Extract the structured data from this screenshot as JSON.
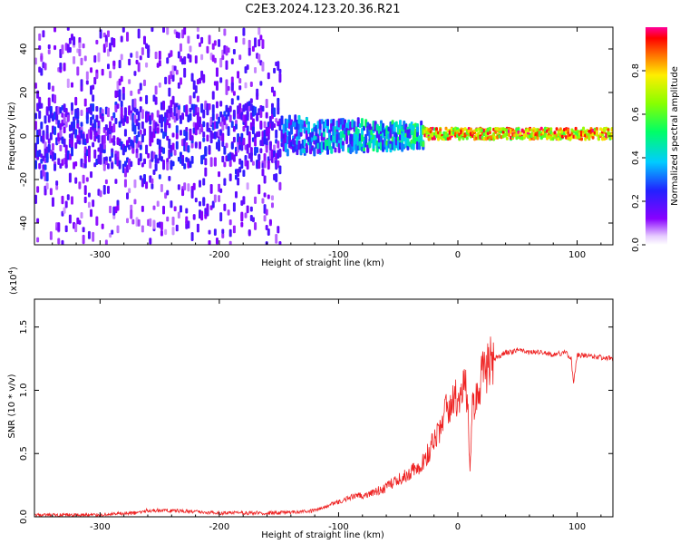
{
  "title": "C2E3.2024.123.20.36.R21",
  "colors": {
    "snr_line": "#ee2222",
    "spectrogram_low": "#8800ff",
    "spectrogram_mid": "#00ffaa",
    "spectrogram_high": "#ff0000"
  },
  "chart_data": [
    {
      "type": "heatmap",
      "name": "spectrogram",
      "xlabel": "Height of straight line (km)",
      "ylabel": "Frequency (Hz)",
      "xlim": [
        -355,
        130
      ],
      "ylim": [
        -50,
        50
      ],
      "xticks": [
        -300,
        -200,
        -100,
        0,
        100
      ],
      "yticks": [
        -40,
        -20,
        0,
        20,
        40
      ],
      "colorbar": {
        "label": "Normalized spectral amplitude",
        "range": [
          0.0,
          1.0
        ],
        "ticks": [
          0.0,
          0.2,
          0.4,
          0.6,
          0.8
        ],
        "tick_labels": [
          "0.0",
          "0.2",
          "0.4",
          "0.6",
          "0.8"
        ],
        "colormap": "rainbow (white → violet → blue → cyan → green → yellow → red → magenta)"
      },
      "description_regions": [
        {
          "x_range": [
            -355,
            -150
          ],
          "freq_spread_hz": 50,
          "amplitude": 0.2
        },
        {
          "x_range": [
            -150,
            -30
          ],
          "freq_spread_hz": 8,
          "amplitude": 0.35
        },
        {
          "x_range": [
            -30,
            130
          ],
          "freq_spread_hz": 3,
          "amplitude": 0.9,
          "center_freq_hz": 1
        }
      ]
    },
    {
      "type": "line",
      "name": "snr",
      "xlabel": "Height of straight line (km)",
      "ylabel": "SNR (10 * v/v)",
      "y_multiplier_label": "(x10",
      "y_multiplier_exp": "4",
      "y_multiplier_close": ")",
      "xlim": [
        -355,
        130
      ],
      "ylim": [
        0,
        1.72
      ],
      "xticks": [
        -300,
        -200,
        -100,
        0,
        100
      ],
      "yticks": [
        0.0,
        0.5,
        1.0,
        1.5
      ],
      "ytick_labels": [
        "0.0",
        "0.5",
        "1.0",
        "1.5"
      ],
      "series": [
        {
          "name": "SNR",
          "x": [
            -355,
            -300,
            -270,
            -260,
            -240,
            -200,
            -150,
            -120,
            -110,
            -100,
            -90,
            -80,
            -70,
            -60,
            -50,
            -40,
            -30,
            -25,
            -20,
            -15,
            -10,
            -5,
            0,
            5,
            8,
            10,
            12,
            15,
            20,
            25,
            30,
            35,
            40,
            45,
            50,
            60,
            70,
            80,
            90,
            95,
            97,
            100,
            110,
            120,
            130
          ],
          "values": [
            0.01,
            0.015,
            0.03,
            0.05,
            0.05,
            0.03,
            0.03,
            0.05,
            0.08,
            0.12,
            0.15,
            0.17,
            0.2,
            0.23,
            0.3,
            0.35,
            0.42,
            0.5,
            0.62,
            0.7,
            0.82,
            0.9,
            0.95,
            1.05,
            0.98,
            0.35,
            0.82,
            0.95,
            1.1,
            1.2,
            1.25,
            1.27,
            1.3,
            1.3,
            1.32,
            1.3,
            1.3,
            1.28,
            1.3,
            1.25,
            1.05,
            1.28,
            1.27,
            1.26,
            1.25
          ]
        }
      ]
    }
  ]
}
